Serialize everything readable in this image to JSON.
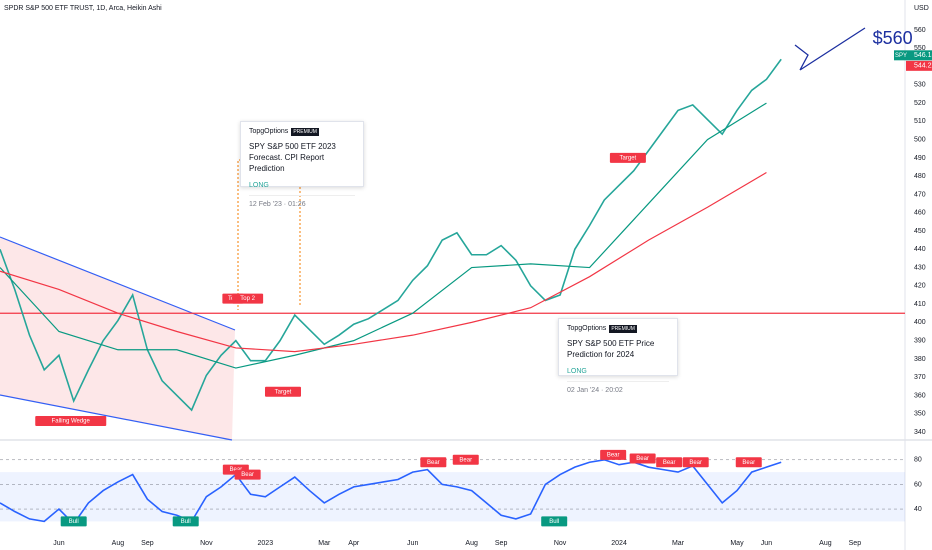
{
  "header": {
    "title": "SPDR S&P 500 ETF TRUST, 1D, Arca, Heikin Ashi",
    "currency": "USD"
  },
  "chart_data": [
    {
      "type": "line",
      "xlim": [
        0,
        30.7
      ],
      "ylim": [
        340,
        560
      ],
      "xticks": [
        {
          "value": 2,
          "label": "Jun"
        },
        {
          "value": 4,
          "label": "Aug"
        },
        {
          "value": 5,
          "label": "Sep"
        },
        {
          "value": 7,
          "label": "Nov"
        },
        {
          "value": 9,
          "label": "2023"
        },
        {
          "value": 11,
          "label": "Mar"
        },
        {
          "value": 12,
          "label": "Apr"
        },
        {
          "value": 14,
          "label": "Jun"
        },
        {
          "value": 16,
          "label": "Aug"
        },
        {
          "value": 17,
          "label": "Sep"
        },
        {
          "value": 19,
          "label": "Nov"
        },
        {
          "value": 21,
          "label": "2024"
        },
        {
          "value": 23,
          "label": "Mar"
        },
        {
          "value": 25,
          "label": "May"
        },
        {
          "value": 26,
          "label": "Jun"
        },
        {
          "value": 28,
          "label": "Aug"
        },
        {
          "value": 29,
          "label": "Sep"
        }
      ],
      "yticks": [
        340,
        350,
        360,
        370,
        380,
        390,
        400,
        410,
        420,
        430,
        440,
        450,
        460,
        470,
        480,
        490,
        500,
        510,
        520,
        530,
        540,
        550,
        560
      ],
      "series": [
        {
          "color": "#26a69a",
          "x": [
            0,
            0.5,
            1,
            1.5,
            2,
            2.5,
            3,
            3.5,
            4,
            4.5,
            5,
            5.5,
            6,
            6.5,
            7,
            7.5,
            8,
            8.5,
            9,
            9.5,
            10,
            10.5,
            11,
            11.5,
            12,
            12.5,
            13,
            13.5,
            14,
            14.5,
            15,
            15.5,
            16,
            16.5,
            17,
            17.5,
            18,
            18.5,
            19,
            19.5,
            20,
            20.5,
            21,
            21.5,
            22,
            22.5,
            23,
            23.5,
            24,
            24.5,
            25,
            25.5,
            26,
            26.5
          ],
          "values": [
            440,
            418,
            393,
            374,
            382,
            357,
            374,
            390,
            401,
            415,
            385,
            368,
            360,
            352,
            371,
            382,
            390,
            379,
            379,
            390,
            404,
            396,
            388,
            393,
            399,
            402,
            407,
            412,
            423,
            431,
            445,
            449,
            437,
            437,
            442,
            434,
            420,
            412,
            415,
            440,
            453,
            467,
            475,
            483,
            494,
            505,
            516,
            519,
            511,
            503,
            516,
            527,
            533,
            544
          ]
        },
        {
          "color": "#089981",
          "x": [
            0,
            2,
            4,
            6,
            8,
            10,
            12,
            14,
            16,
            18,
            20,
            22,
            24,
            26
          ],
          "values": [
            430,
            395,
            385,
            385,
            375,
            382,
            390,
            405,
            430,
            432,
            430,
            465,
            500,
            520
          ]
        },
        {
          "color": "#f23645",
          "x": [
            0,
            2,
            4,
            6,
            8,
            10,
            12,
            14,
            16,
            18,
            20,
            22,
            24,
            26
          ],
          "values": [
            428,
            418,
            405,
            395,
            386,
            384,
            388,
            393,
            400,
            408,
            425,
            445,
            463,
            482
          ]
        }
      ],
      "resistance": 405,
      "price_tags": [
        {
          "label": "SPY",
          "value": 546.15
        },
        {
          "value": 544.22
        }
      ],
      "annotations": [
        {
          "text": "Top",
          "x": 7.9,
          "y": 413
        },
        {
          "text": "Top 2",
          "x": 8.4,
          "y": 413
        },
        {
          "text": "Target",
          "x": 9.6,
          "y": 362
        },
        {
          "text": "Target",
          "x": 21.3,
          "y": 490
        },
        {
          "text": "Falling Wedge",
          "x": 2.4,
          "y": 346
        },
        {
          "text": "$560",
          "x": 29.6,
          "y": 555
        }
      ]
    },
    {
      "type": "line",
      "xlim": [
        0,
        30.7
      ],
      "ylim": [
        23,
        92
      ],
      "yticks": [
        40,
        60,
        80
      ],
      "band": [
        30,
        70
      ],
      "series": [
        {
          "color": "#2962ff",
          "x": [
            0,
            0.5,
            1,
            1.5,
            2,
            2.5,
            3,
            3.5,
            4,
            4.5,
            5,
            5.5,
            6,
            6.5,
            7,
            7.5,
            8,
            8.5,
            9,
            9.5,
            10,
            10.5,
            11,
            11.5,
            12,
            12.5,
            13,
            13.5,
            14,
            14.5,
            15,
            15.5,
            16,
            16.5,
            17,
            17.5,
            18,
            18.5,
            19,
            19.5,
            20,
            20.5,
            21,
            21.5,
            22,
            22.5,
            23,
            23.5,
            24,
            24.5,
            25,
            25.5,
            26,
            26.5
          ],
          "values": [
            45,
            38,
            32,
            30,
            40,
            28,
            45,
            55,
            62,
            68,
            48,
            38,
            35,
            30,
            50,
            58,
            68,
            52,
            50,
            58,
            66,
            55,
            45,
            52,
            58,
            60,
            62,
            64,
            70,
            72,
            60,
            58,
            55,
            45,
            35,
            32,
            36,
            60,
            68,
            74,
            78,
            80,
            76,
            78,
            74,
            72,
            70,
            75,
            60,
            45,
            55,
            70,
            74,
            78
          ]
        }
      ],
      "annotations": [
        {
          "text": "Bull",
          "x": 2.5,
          "y": 30
        },
        {
          "text": "Bull",
          "x": 6.3,
          "y": 30
        },
        {
          "text": "Bear",
          "x": 8,
          "y": 72
        },
        {
          "text": "Bear",
          "x": 8.4,
          "y": 68
        },
        {
          "text": "Bear",
          "x": 14.7,
          "y": 78
        },
        {
          "text": "Bear",
          "x": 15.8,
          "y": 80
        },
        {
          "text": "Bull",
          "x": 18.8,
          "y": 30
        },
        {
          "text": "Bear",
          "x": 20.8,
          "y": 84
        },
        {
          "text": "Bear",
          "x": 21.8,
          "y": 81
        },
        {
          "text": "Bear",
          "x": 22.7,
          "y": 78
        },
        {
          "text": "Bear",
          "x": 23.6,
          "y": 78
        },
        {
          "text": "Bear",
          "x": 25.4,
          "y": 78
        }
      ]
    }
  ],
  "cards": [
    {
      "author": "TopgOptions",
      "badge": "PREMIUM",
      "title": "SPY S&P 500 ETF 2023 Forecast. CPI Report Prediction",
      "side": "LONG",
      "date": "12 Feb '23 · 01:26"
    },
    {
      "author": "TopgOptions",
      "badge": "PREMIUM",
      "title": "SPY S&P 500 ETF Price Prediction for 2024",
      "side": "LONG",
      "date": "02 Jan '24 · 20:02"
    }
  ]
}
